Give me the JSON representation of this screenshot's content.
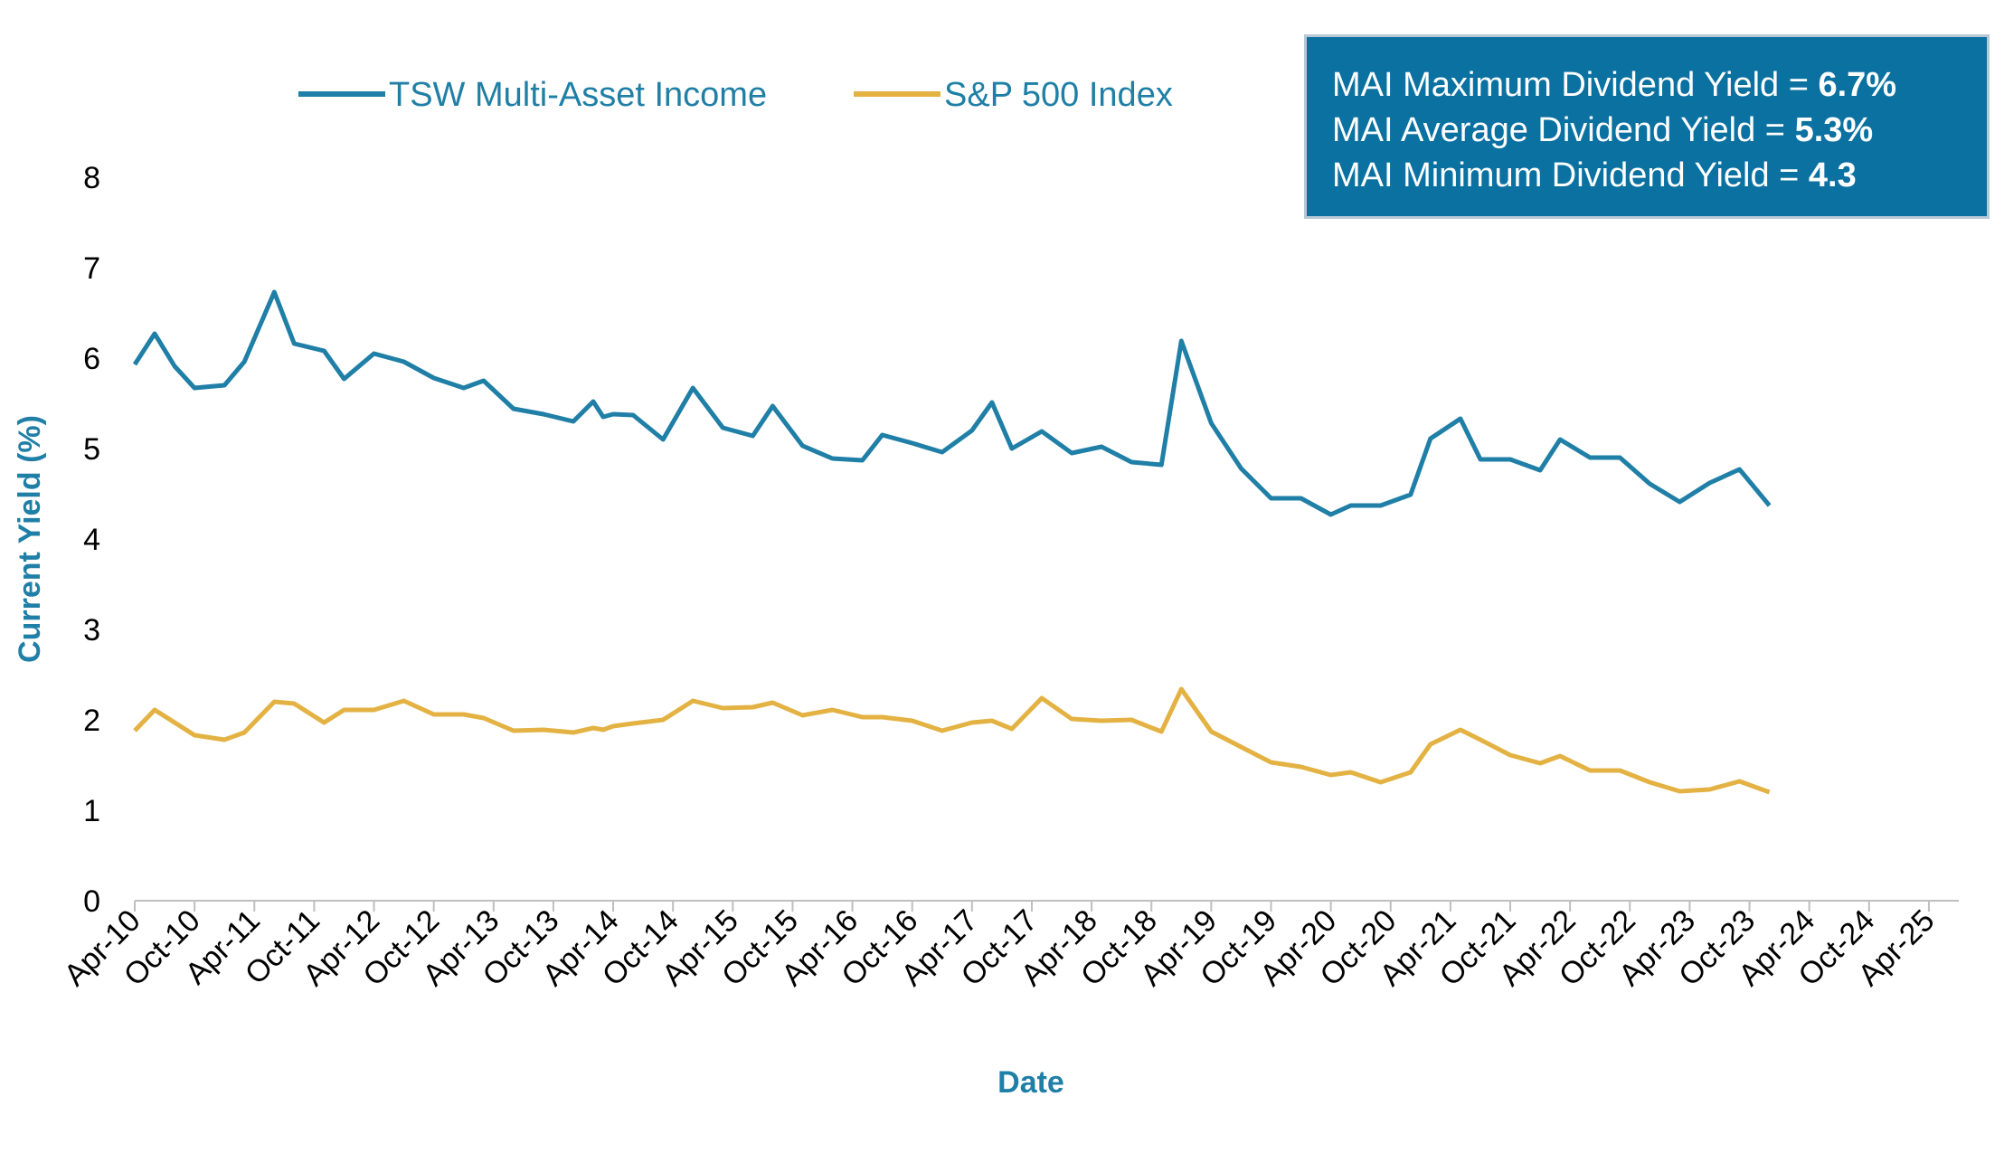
{
  "colors": {
    "mai": "#1f7fa6",
    "sp": "#e3b243",
    "title": "#1f7fa6",
    "box": "#0b71a1"
  },
  "legend": [
    {
      "label": "TSW Multi-Asset Income",
      "color": "#1f7fa6"
    },
    {
      "label": "S&P 500 Index",
      "color": "#e3b243"
    }
  ],
  "info_box": [
    {
      "text": "MAI Maximum Dividend Yield = ",
      "value": "6.7%"
    },
    {
      "text": "MAI Average Dividend Yield = ",
      "value": "5.3%"
    },
    {
      "text": "MAI Minimum Dividend Yield = ",
      "value": "4.3"
    }
  ],
  "chart_data": {
    "type": "line",
    "title": "",
    "xlabel": "Date",
    "ylabel": "Current Yield (%)",
    "ylim": [
      0,
      8
    ],
    "yticks": [
      0,
      1,
      2,
      3,
      4,
      5,
      6,
      7,
      8
    ],
    "grid": false,
    "legend_position": "top-left",
    "xticks": [
      "Apr-10",
      "Oct-10",
      "Apr-11",
      "Oct-11",
      "Apr-12",
      "Oct-12",
      "Apr-13",
      "Oct-13",
      "Apr-14",
      "Oct-14",
      "Apr-15",
      "Oct-15",
      "Apr-16",
      "Oct-16",
      "Apr-17",
      "Oct-17",
      "Apr-18",
      "Oct-18",
      "Apr-19",
      "Oct-19",
      "Apr-20",
      "Oct-20",
      "Apr-21",
      "Oct-21",
      "Apr-22",
      "Oct-22",
      "Apr-23",
      "Oct-23",
      "Apr-24",
      "Oct-24",
      "Apr-25"
    ],
    "x_range": [
      "Apr-10",
      "Jul-25"
    ],
    "series": [
      {
        "name": "TSW Multi-Asset Income",
        "points": [
          [
            "Apr-10",
            5.93
          ],
          [
            "Jun-10",
            6.27
          ],
          [
            "Aug-10",
            5.91
          ],
          [
            "Oct-10",
            5.67
          ],
          [
            "Jan-11",
            5.7
          ],
          [
            "Mar-11",
            5.96
          ],
          [
            "Jun-11",
            6.73
          ],
          [
            "Aug-11",
            6.16
          ],
          [
            "Nov-11",
            6.08
          ],
          [
            "Jan-12",
            5.77
          ],
          [
            "Apr-12",
            6.05
          ],
          [
            "Jul-12",
            5.96
          ],
          [
            "Oct-12",
            5.78
          ],
          [
            "Jan-13",
            5.67
          ],
          [
            "Mar-13",
            5.75
          ],
          [
            "Jun-13",
            5.44
          ],
          [
            "Sep-13",
            5.38
          ],
          [
            "Dec-13",
            5.3
          ],
          [
            "Feb-14",
            5.52
          ],
          [
            "Mar-14",
            5.35
          ],
          [
            "Apr-14",
            5.38
          ],
          [
            "Jun-14",
            5.37
          ],
          [
            "Sep-14",
            5.1
          ],
          [
            "Dec-14",
            5.67
          ],
          [
            "Mar-15",
            5.23
          ],
          [
            "Jun-15",
            5.14
          ],
          [
            "Aug-15",
            5.47
          ],
          [
            "Nov-15",
            5.03
          ],
          [
            "Feb-16",
            4.89
          ],
          [
            "May-16",
            4.87
          ],
          [
            "Jul-16",
            5.15
          ],
          [
            "Oct-16",
            5.06
          ],
          [
            "Jan-17",
            4.96
          ],
          [
            "Apr-17",
            5.2
          ],
          [
            "Jun-17",
            5.51
          ],
          [
            "Aug-17",
            5.0
          ],
          [
            "Nov-17",
            5.19
          ],
          [
            "Feb-18",
            4.95
          ],
          [
            "May-18",
            5.02
          ],
          [
            "Aug-18",
            4.85
          ],
          [
            "Nov-18",
            4.82
          ],
          [
            "Jan-19",
            6.19
          ],
          [
            "Apr-19",
            5.28
          ],
          [
            "Jul-19",
            4.78
          ],
          [
            "Oct-19",
            4.45
          ],
          [
            "Jan-20",
            4.45
          ],
          [
            "Apr-20",
            4.27
          ],
          [
            "Jun-20",
            4.37
          ],
          [
            "Sep-20",
            4.37
          ],
          [
            "Dec-20",
            4.49
          ],
          [
            "Feb-21",
            5.11
          ],
          [
            "May-21",
            5.33
          ],
          [
            "Jul-21",
            4.88
          ],
          [
            "Oct-21",
            4.88
          ],
          [
            "Jan-22",
            4.76
          ],
          [
            "Mar-22",
            5.1
          ],
          [
            "Jun-22",
            4.9
          ],
          [
            "Sep-22",
            4.9
          ],
          [
            "Dec-22",
            4.61
          ],
          [
            "Mar-23",
            4.41
          ],
          [
            "Jun-23",
            4.62
          ],
          [
            "Sep-23",
            4.77
          ],
          [
            "Dec-23",
            4.37
          ]
        ]
      },
      {
        "name": "S&P 500 Index",
        "points": [
          [
            "Apr-10",
            1.88
          ],
          [
            "Jun-10",
            2.11
          ],
          [
            "Aug-10",
            1.97
          ],
          [
            "Oct-10",
            1.83
          ],
          [
            "Jan-11",
            1.78
          ],
          [
            "Mar-11",
            1.86
          ],
          [
            "Jun-11",
            2.2
          ],
          [
            "Aug-11",
            2.18
          ],
          [
            "Nov-11",
            1.97
          ],
          [
            "Jan-12",
            2.11
          ],
          [
            "Apr-12",
            2.11
          ],
          [
            "Jul-12",
            2.21
          ],
          [
            "Oct-12",
            2.06
          ],
          [
            "Jan-13",
            2.06
          ],
          [
            "Mar-13",
            2.02
          ],
          [
            "Jun-13",
            1.88
          ],
          [
            "Sep-13",
            1.89
          ],
          [
            "Dec-13",
            1.86
          ],
          [
            "Feb-14",
            1.91
          ],
          [
            "Mar-14",
            1.89
          ],
          [
            "Apr-14",
            1.93
          ],
          [
            "Jun-14",
            1.96
          ],
          [
            "Sep-14",
            2.0
          ],
          [
            "Dec-14",
            2.21
          ],
          [
            "Mar-15",
            2.13
          ],
          [
            "Jun-15",
            2.14
          ],
          [
            "Aug-15",
            2.19
          ],
          [
            "Nov-15",
            2.05
          ],
          [
            "Feb-16",
            2.11
          ],
          [
            "May-16",
            2.03
          ],
          [
            "Jul-16",
            2.03
          ],
          [
            "Oct-16",
            1.99
          ],
          [
            "Jan-17",
            1.88
          ],
          [
            "Apr-17",
            1.97
          ],
          [
            "Jun-17",
            1.99
          ],
          [
            "Aug-17",
            1.9
          ],
          [
            "Nov-17",
            2.24
          ],
          [
            "Feb-18",
            2.01
          ],
          [
            "May-18",
            1.99
          ],
          [
            "Aug-18",
            2.0
          ],
          [
            "Nov-18",
            1.87
          ],
          [
            "Jan-19",
            2.34
          ],
          [
            "Apr-19",
            1.87
          ],
          [
            "Jul-19",
            1.7
          ],
          [
            "Oct-19",
            1.53
          ],
          [
            "Jan-20",
            1.48
          ],
          [
            "Apr-20",
            1.39
          ],
          [
            "Jun-20",
            1.42
          ],
          [
            "Sep-20",
            1.31
          ],
          [
            "Dec-20",
            1.42
          ],
          [
            "Feb-21",
            1.73
          ],
          [
            "May-21",
            1.89
          ],
          [
            "Jul-21",
            1.78
          ],
          [
            "Oct-21",
            1.61
          ],
          [
            "Jan-22",
            1.52
          ],
          [
            "Mar-22",
            1.6
          ],
          [
            "Jun-22",
            1.44
          ],
          [
            "Sep-22",
            1.44
          ],
          [
            "Dec-22",
            1.31
          ],
          [
            "Mar-23",
            1.21
          ],
          [
            "Jun-23",
            1.23
          ],
          [
            "Sep-23",
            1.32
          ],
          [
            "Dec-23",
            1.2
          ]
        ]
      }
    ]
  }
}
